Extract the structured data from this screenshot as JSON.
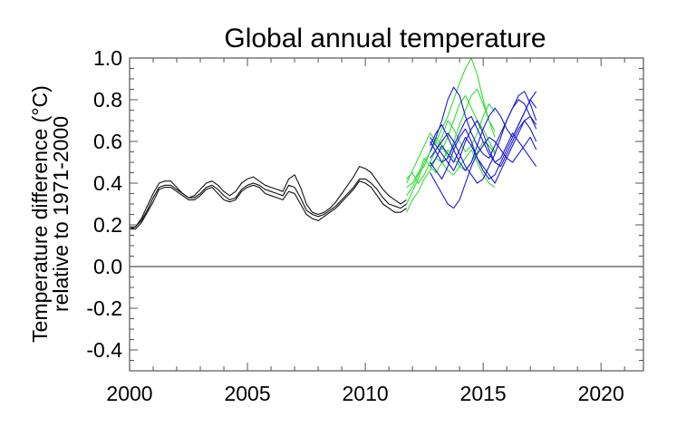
{
  "chart_data": {
    "type": "line",
    "title": "Global annual temperature",
    "xlabel": "",
    "ylabel_lines": [
      "Temperature difference (°C)",
      "relative to 1971-2000"
    ],
    "xlim": [
      2000,
      2021.8
    ],
    "ylim": [
      -0.5,
      1.0
    ],
    "x_ticks": [
      2000,
      2005,
      2010,
      2015,
      2020
    ],
    "x_tick_labels": [
      "2000",
      "2005",
      "2010",
      "2015",
      "2020"
    ],
    "y_ticks": [
      -0.4,
      -0.2,
      0.0,
      0.2,
      0.4,
      0.6,
      0.8,
      1.0
    ],
    "y_tick_labels": [
      "-0.4",
      "-0.2",
      "0.0",
      "0.2",
      "0.4",
      "0.6",
      "0.8",
      "1.0"
    ],
    "reference_line_y": 0.0,
    "grid": false,
    "legend": "none",
    "colors": {
      "observed": "#111111",
      "green_ensemble": "#33dd33",
      "blue_ensemble": "#1a1ad0",
      "axis": "#555555"
    },
    "series_groups": [
      {
        "name": "observed",
        "color_key": "observed",
        "x_start": 2000.0,
        "x_step": 0.25,
        "series": [
          [
            0.19,
            0.19,
            0.22,
            0.27,
            0.33,
            0.38,
            0.39,
            0.39,
            0.37,
            0.35,
            0.33,
            0.33,
            0.35,
            0.38,
            0.39,
            0.37,
            0.34,
            0.32,
            0.33,
            0.37,
            0.39,
            0.4,
            0.39,
            0.37,
            0.36,
            0.35,
            0.34,
            0.39,
            0.38,
            0.33,
            0.27,
            0.25,
            0.24,
            0.25,
            0.27,
            0.29,
            0.32,
            0.35,
            0.38,
            0.42,
            0.42,
            0.4,
            0.37,
            0.33,
            0.3,
            0.29,
            0.28,
            0.3
          ],
          [
            0.18,
            0.19,
            0.23,
            0.29,
            0.35,
            0.4,
            0.41,
            0.41,
            0.38,
            0.35,
            0.33,
            0.34,
            0.37,
            0.4,
            0.41,
            0.39,
            0.36,
            0.34,
            0.36,
            0.4,
            0.42,
            0.43,
            0.41,
            0.39,
            0.38,
            0.37,
            0.36,
            0.42,
            0.44,
            0.38,
            0.3,
            0.26,
            0.25,
            0.26,
            0.28,
            0.31,
            0.35,
            0.39,
            0.43,
            0.48,
            0.47,
            0.45,
            0.41,
            0.37,
            0.34,
            0.32,
            0.3,
            0.32
          ],
          [
            0.18,
            0.18,
            0.21,
            0.26,
            0.31,
            0.37,
            0.38,
            0.38,
            0.36,
            0.34,
            0.32,
            0.32,
            0.34,
            0.37,
            0.38,
            0.35,
            0.32,
            0.31,
            0.32,
            0.36,
            0.38,
            0.39,
            0.38,
            0.35,
            0.34,
            0.33,
            0.32,
            0.36,
            0.35,
            0.3,
            0.25,
            0.23,
            0.22,
            0.24,
            0.26,
            0.28,
            0.31,
            0.34,
            0.37,
            0.41,
            0.4,
            0.38,
            0.34,
            0.3,
            0.28,
            0.26,
            0.26,
            0.28
          ]
        ]
      },
      {
        "name": "green_ensemble",
        "color_key": "green_ensemble",
        "x_start": 2011.75,
        "x_step": 0.25,
        "series": [
          [
            0.3,
            0.36,
            0.42,
            0.5,
            0.55,
            0.6,
            0.66,
            0.72,
            0.8,
            0.88,
            0.95,
            1.0,
            0.92,
            0.8,
            0.7,
            0.62
          ],
          [
            0.38,
            0.4,
            0.45,
            0.48,
            0.55,
            0.62,
            0.58,
            0.52,
            0.6,
            0.68,
            0.75,
            0.82,
            0.85,
            0.78,
            0.7,
            0.65
          ],
          [
            0.42,
            0.45,
            0.4,
            0.44,
            0.5,
            0.56,
            0.62,
            0.7,
            0.66,
            0.6,
            0.55,
            0.58,
            0.64,
            0.72,
            0.78,
            0.74
          ],
          [
            0.34,
            0.38,
            0.44,
            0.52,
            0.48,
            0.45,
            0.5,
            0.56,
            0.52,
            0.48,
            0.46,
            0.5,
            0.55,
            0.6,
            0.58,
            0.54
          ],
          [
            0.4,
            0.46,
            0.52,
            0.58,
            0.64,
            0.6,
            0.56,
            0.62,
            0.7,
            0.78,
            0.82,
            0.76,
            0.7,
            0.66,
            0.6,
            0.55
          ],
          [
            0.26,
            0.32,
            0.36,
            0.42,
            0.46,
            0.52,
            0.5,
            0.46,
            0.44,
            0.48,
            0.52,
            0.56,
            0.5,
            0.44,
            0.4,
            0.38
          ]
        ]
      },
      {
        "name": "blue_ensemble",
        "color_key": "blue_ensemble",
        "x_start": 2012.75,
        "x_step": 0.25,
        "series": [
          [
            0.55,
            0.62,
            0.7,
            0.8,
            0.86,
            0.82,
            0.72,
            0.64,
            0.58,
            0.54,
            0.52,
            0.58,
            0.64,
            0.7,
            0.76,
            0.8,
            0.78,
            0.72,
            0.66
          ],
          [
            0.5,
            0.46,
            0.42,
            0.48,
            0.56,
            0.62,
            0.66,
            0.6,
            0.52,
            0.46,
            0.42,
            0.44,
            0.5,
            0.56,
            0.62,
            0.68,
            0.74,
            0.8,
            0.84
          ],
          [
            0.62,
            0.58,
            0.54,
            0.5,
            0.46,
            0.52,
            0.6,
            0.66,
            0.7,
            0.64,
            0.56,
            0.5,
            0.48,
            0.54,
            0.6,
            0.66,
            0.7,
            0.66,
            0.6
          ],
          [
            0.45,
            0.4,
            0.35,
            0.3,
            0.28,
            0.32,
            0.4,
            0.48,
            0.54,
            0.58,
            0.62,
            0.6,
            0.56,
            0.52,
            0.5,
            0.54,
            0.58,
            0.62,
            0.56
          ],
          [
            0.58,
            0.64,
            0.68,
            0.62,
            0.56,
            0.5,
            0.46,
            0.5,
            0.58,
            0.66,
            0.72,
            0.76,
            0.72,
            0.66,
            0.62,
            0.68,
            0.74,
            0.8,
            0.76
          ],
          [
            0.52,
            0.56,
            0.6,
            0.64,
            0.6,
            0.54,
            0.48,
            0.44,
            0.4,
            0.42,
            0.48,
            0.54,
            0.62,
            0.7,
            0.76,
            0.82,
            0.84,
            0.78,
            0.7
          ],
          [
            0.6,
            0.55,
            0.5,
            0.52,
            0.58,
            0.64,
            0.7,
            0.72,
            0.66,
            0.6,
            0.54,
            0.5,
            0.52,
            0.58,
            0.64,
            0.6,
            0.56,
            0.52,
            0.48
          ],
          [
            0.48,
            0.52,
            0.58,
            0.54,
            0.5,
            0.56,
            0.62,
            0.58,
            0.52,
            0.48,
            0.44,
            0.4,
            0.46,
            0.52,
            0.58,
            0.64,
            0.7,
            0.72,
            0.68
          ]
        ]
      }
    ]
  }
}
